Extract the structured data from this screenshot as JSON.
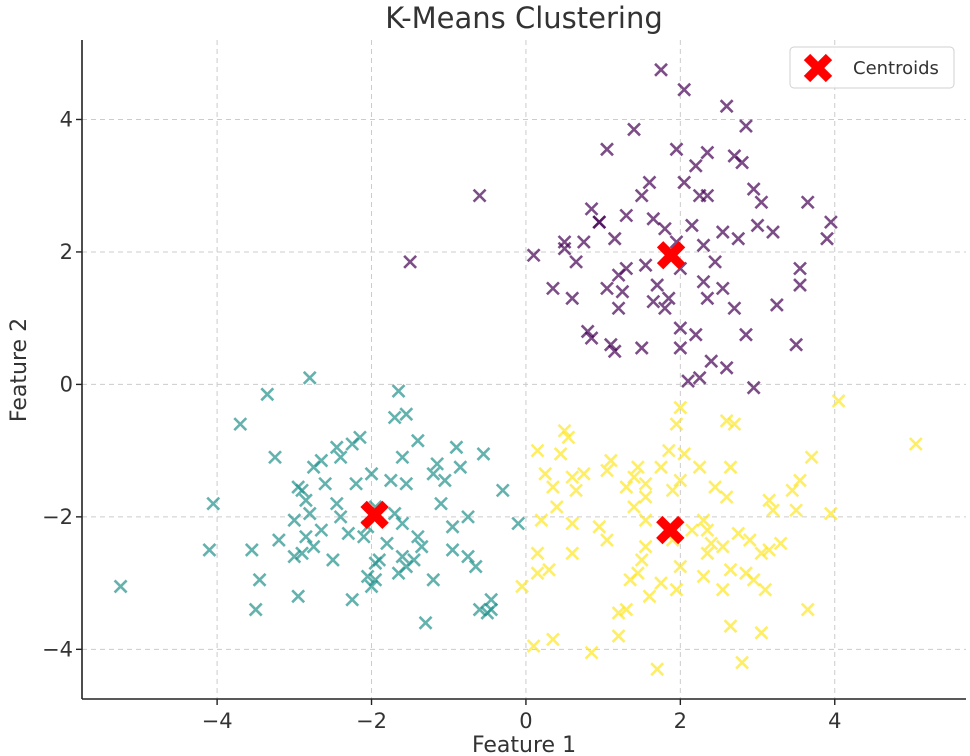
{
  "chart_data": {
    "type": "scatter",
    "title": "K-Means Clustering",
    "xlabel": "Feature 1",
    "ylabel": "Feature 2",
    "xlim": [
      -5.75,
      5.7
    ],
    "ylim": [
      -4.75,
      5.2
    ],
    "xticks": [
      -4,
      -2,
      0,
      2,
      4
    ],
    "xtick_labels": [
      "−4",
      "−2",
      "0",
      "2",
      "4"
    ],
    "yticks": [
      -4,
      -2,
      0,
      2,
      4
    ],
    "ytick_labels": [
      "−4",
      "−2",
      "0",
      "2",
      "4"
    ],
    "grid": true,
    "legend": {
      "position": "top-right",
      "entries": [
        {
          "label": "Centroids",
          "color": "#ff0000"
        }
      ]
    },
    "colors": {
      "cluster_purple": "#440154",
      "cluster_teal": "#21918c",
      "cluster_yellow": "#fde725",
      "centroid": "#ff0000"
    },
    "series": [
      {
        "color": "#440154",
        "points": [
          [
            1.75,
            4.75
          ],
          [
            2.05,
            4.45
          ],
          [
            2.6,
            4.2
          ],
          [
            1.4,
            3.85
          ],
          [
            2.85,
            3.9
          ],
          [
            1.05,
            3.55
          ],
          [
            1.95,
            3.55
          ],
          [
            2.35,
            3.5
          ],
          [
            2.7,
            3.45
          ],
          [
            2.2,
            3.3
          ],
          [
            2.8,
            3.35
          ],
          [
            1.6,
            3.05
          ],
          [
            2.05,
            3.05
          ],
          [
            2.95,
            2.95
          ],
          [
            1.5,
            2.85
          ],
          [
            2.25,
            2.85
          ],
          [
            3.05,
            2.75
          ],
          [
            3.65,
            2.75
          ],
          [
            0.85,
            2.65
          ],
          [
            1.3,
            2.55
          ],
          [
            1.65,
            2.5
          ],
          [
            0.95,
            2.45
          ],
          [
            1.8,
            2.35
          ],
          [
            2.15,
            2.4
          ],
          [
            2.55,
            2.3
          ],
          [
            2.75,
            2.2
          ],
          [
            3.2,
            2.3
          ],
          [
            3.95,
            2.45
          ],
          [
            0.5,
            2.15
          ],
          [
            0.75,
            2.15
          ],
          [
            1.15,
            2.2
          ],
          [
            1.95,
            2.15
          ],
          [
            2.3,
            2.1
          ],
          [
            3.9,
            2.2
          ],
          [
            0.1,
            1.95
          ],
          [
            0.65,
            1.85
          ],
          [
            1.3,
            1.75
          ],
          [
            1.55,
            1.8
          ],
          [
            2.0,
            1.75
          ],
          [
            2.45,
            1.85
          ],
          [
            1.2,
            1.65
          ],
          [
            1.7,
            1.5
          ],
          [
            2.3,
            1.55
          ],
          [
            3.55,
            1.75
          ],
          [
            0.35,
            1.45
          ],
          [
            0.6,
            1.3
          ],
          [
            1.05,
            1.45
          ],
          [
            1.25,
            1.4
          ],
          [
            1.85,
            1.3
          ],
          [
            2.35,
            1.3
          ],
          [
            3.55,
            1.5
          ],
          [
            1.2,
            1.15
          ],
          [
            1.65,
            1.25
          ],
          [
            2.7,
            1.15
          ],
          [
            3.25,
            1.2
          ],
          [
            0.8,
            0.8
          ],
          [
            1.1,
            0.6
          ],
          [
            2.0,
            0.85
          ],
          [
            2.2,
            0.75
          ],
          [
            2.85,
            0.75
          ],
          [
            1.5,
            0.55
          ],
          [
            2.0,
            0.55
          ],
          [
            2.4,
            0.35
          ],
          [
            3.5,
            0.6
          ],
          [
            2.6,
            0.25
          ],
          [
            2.1,
            0.05
          ],
          [
            2.25,
            0.1
          ],
          [
            2.95,
            -0.05
          ],
          [
            -0.6,
            2.85
          ],
          [
            -1.5,
            1.85
          ],
          [
            0.95,
            2.45
          ],
          [
            0.85,
            0.7
          ],
          [
            1.15,
            0.5
          ],
          [
            2.35,
            2.85
          ],
          [
            1.8,
            1.15
          ],
          [
            2.55,
            1.45
          ],
          [
            3.0,
            2.4
          ],
          [
            0.5,
            2.05
          ]
        ]
      },
      {
        "color": "#21918c",
        "points": [
          [
            -2.8,
            0.1
          ],
          [
            -1.65,
            -0.1
          ],
          [
            -3.35,
            -0.15
          ],
          [
            -1.55,
            -0.45
          ],
          [
            -1.7,
            -0.5
          ],
          [
            -3.7,
            -0.6
          ],
          [
            -2.15,
            -0.8
          ],
          [
            -2.25,
            -0.9
          ],
          [
            -1.4,
            -0.85
          ],
          [
            -2.45,
            -0.95
          ],
          [
            -0.9,
            -0.95
          ],
          [
            -3.25,
            -1.1
          ],
          [
            -1.6,
            -1.1
          ],
          [
            -0.55,
            -1.05
          ],
          [
            -2.65,
            -1.15
          ],
          [
            -2.75,
            -1.25
          ],
          [
            -1.15,
            -1.2
          ],
          [
            -0.85,
            -1.25
          ],
          [
            -2.0,
            -1.35
          ],
          [
            -1.2,
            -1.35
          ],
          [
            -1.75,
            -1.45
          ],
          [
            -2.95,
            -1.55
          ],
          [
            -2.6,
            -1.5
          ],
          [
            -2.2,
            -1.5
          ],
          [
            -1.55,
            -1.5
          ],
          [
            -0.3,
            -1.6
          ],
          [
            -4.05,
            -1.8
          ],
          [
            -2.85,
            -1.75
          ],
          [
            -2.45,
            -1.8
          ],
          [
            -1.95,
            -1.85
          ],
          [
            -1.1,
            -1.8
          ],
          [
            -2.8,
            -1.95
          ],
          [
            -1.7,
            -1.95
          ],
          [
            -0.75,
            -2.0
          ],
          [
            -0.1,
            -2.1
          ],
          [
            -3.0,
            -2.05
          ],
          [
            -2.4,
            -2.0
          ],
          [
            -2.05,
            -2.15
          ],
          [
            -1.6,
            -2.1
          ],
          [
            -0.95,
            -2.15
          ],
          [
            -2.85,
            -2.3
          ],
          [
            -2.1,
            -2.3
          ],
          [
            -1.4,
            -2.3
          ],
          [
            -3.2,
            -2.35
          ],
          [
            -2.75,
            -2.45
          ],
          [
            -1.8,
            -2.4
          ],
          [
            -1.35,
            -2.45
          ],
          [
            -0.95,
            -2.5
          ],
          [
            -4.1,
            -2.5
          ],
          [
            -3.55,
            -2.5
          ],
          [
            -2.9,
            -2.55
          ],
          [
            -1.9,
            -2.65
          ],
          [
            -1.6,
            -2.6
          ],
          [
            -0.75,
            -2.6
          ],
          [
            -0.65,
            -2.75
          ],
          [
            -2.5,
            -2.65
          ],
          [
            -1.95,
            -2.7
          ],
          [
            -1.55,
            -2.75
          ],
          [
            -1.45,
            -2.65
          ],
          [
            -1.65,
            -2.85
          ],
          [
            -1.95,
            -2.95
          ],
          [
            -1.2,
            -2.95
          ],
          [
            -3.45,
            -2.95
          ],
          [
            -5.25,
            -3.05
          ],
          [
            -2.0,
            -3.05
          ],
          [
            -2.95,
            -3.2
          ],
          [
            -2.25,
            -3.25
          ],
          [
            -0.45,
            -3.25
          ],
          [
            -0.5,
            -3.45
          ],
          [
            -3.5,
            -3.4
          ],
          [
            -0.6,
            -3.4
          ],
          [
            -1.3,
            -3.6
          ],
          [
            -2.05,
            -2.9
          ],
          [
            -2.3,
            -2.25
          ],
          [
            -2.65,
            -2.2
          ],
          [
            -1.05,
            -1.45
          ],
          [
            -2.9,
            -1.6
          ],
          [
            -3.0,
            -2.6
          ],
          [
            -2.4,
            -1.1
          ],
          [
            -0.45,
            -3.4
          ]
        ]
      },
      {
        "color": "#fde725",
        "points": [
          [
            4.05,
            -0.25
          ],
          [
            2.0,
            -0.35
          ],
          [
            5.05,
            -0.9
          ],
          [
            0.5,
            -0.7
          ],
          [
            0.55,
            -0.8
          ],
          [
            1.95,
            -0.6
          ],
          [
            2.6,
            -0.55
          ],
          [
            2.7,
            -0.6
          ],
          [
            0.15,
            -1.0
          ],
          [
            1.85,
            -1.0
          ],
          [
            2.05,
            -1.05
          ],
          [
            3.7,
            -1.1
          ],
          [
            1.1,
            -1.15
          ],
          [
            1.45,
            -1.25
          ],
          [
            1.75,
            -1.25
          ],
          [
            2.25,
            -1.25
          ],
          [
            2.65,
            -1.25
          ],
          [
            1.05,
            -1.3
          ],
          [
            0.75,
            -1.35
          ],
          [
            0.25,
            -1.35
          ],
          [
            0.6,
            -1.4
          ],
          [
            1.4,
            -1.4
          ],
          [
            2.0,
            -1.45
          ],
          [
            3.55,
            -1.45
          ],
          [
            0.35,
            -1.55
          ],
          [
            1.55,
            -1.5
          ],
          [
            1.3,
            -1.55
          ],
          [
            1.9,
            -1.6
          ],
          [
            2.45,
            -1.55
          ],
          [
            0.65,
            -1.6
          ],
          [
            3.45,
            -1.6
          ],
          [
            1.55,
            -1.7
          ],
          [
            2.6,
            -1.7
          ],
          [
            3.15,
            -1.75
          ],
          [
            1.4,
            -1.85
          ],
          [
            0.4,
            -1.85
          ],
          [
            3.5,
            -1.9
          ],
          [
            3.95,
            -1.95
          ],
          [
            3.2,
            -1.9
          ],
          [
            0.2,
            -2.05
          ],
          [
            0.6,
            -2.1
          ],
          [
            1.55,
            -2.05
          ],
          [
            2.3,
            -2.05
          ],
          [
            1.85,
            -2.15
          ],
          [
            0.95,
            -2.15
          ],
          [
            2.35,
            -2.2
          ],
          [
            2.75,
            -2.25
          ],
          [
            1.05,
            -2.35
          ],
          [
            1.9,
            -2.35
          ],
          [
            2.4,
            -2.4
          ],
          [
            2.55,
            -2.45
          ],
          [
            3.3,
            -2.4
          ],
          [
            1.55,
            -2.45
          ],
          [
            0.15,
            -2.55
          ],
          [
            0.6,
            -2.55
          ],
          [
            2.35,
            -2.55
          ],
          [
            3.05,
            -2.55
          ],
          [
            2.0,
            -2.75
          ],
          [
            1.5,
            -2.65
          ],
          [
            1.45,
            -2.85
          ],
          [
            2.65,
            -2.8
          ],
          [
            0.3,
            -2.8
          ],
          [
            0.15,
            -2.85
          ],
          [
            2.3,
            -2.9
          ],
          [
            2.95,
            -2.95
          ],
          [
            2.85,
            -2.85
          ],
          [
            1.35,
            -2.95
          ],
          [
            1.75,
            -3.0
          ],
          [
            1.95,
            -3.1
          ],
          [
            2.55,
            -3.1
          ],
          [
            3.1,
            -3.1
          ],
          [
            -0.05,
            -3.05
          ],
          [
            1.3,
            -3.4
          ],
          [
            1.2,
            -3.45
          ],
          [
            3.65,
            -3.4
          ],
          [
            2.65,
            -3.65
          ],
          [
            3.05,
            -3.75
          ],
          [
            1.2,
            -3.8
          ],
          [
            0.35,
            -3.85
          ],
          [
            0.1,
            -3.95
          ],
          [
            0.85,
            -4.05
          ],
          [
            2.8,
            -4.2
          ],
          [
            1.7,
            -4.3
          ],
          [
            2.15,
            -2.2
          ],
          [
            2.9,
            -2.35
          ],
          [
            1.6,
            -3.2
          ],
          [
            0.45,
            -1.05
          ],
          [
            3.15,
            -2.5
          ]
        ]
      }
    ],
    "centroids": [
      [
        1.88,
        1.95
      ],
      [
        -1.96,
        -1.97
      ],
      [
        1.87,
        -2.2
      ]
    ]
  }
}
